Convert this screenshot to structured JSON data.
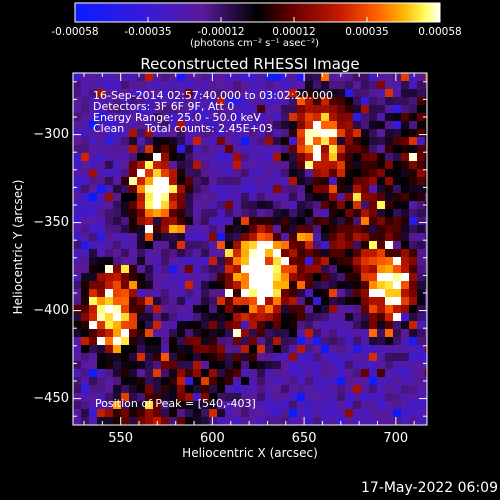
{
  "colorbar": {
    "tick_labels": [
      "-0.00058",
      "-0.00035",
      "-0.00012",
      "0.00012",
      "0.00035",
      "0.00058"
    ],
    "units_label": "(photons cm⁻² s⁻¹ asec⁻²)",
    "colors": [
      "#0a1cff",
      "#3a1ad6",
      "#5a1a9a",
      "#000000",
      "#6a0000",
      "#c01800",
      "#ff5a00",
      "#ffb400",
      "#ffff60",
      "#ffffff"
    ]
  },
  "title": "Reconstructed RHESSI Image",
  "info": {
    "line1": "16-Sep-2014 02:57:40.000 to 03:02:20.000",
    "line2": "Detectors: 3F 6F 9F, Att 0",
    "line3": "Energy Range: 25.0 - 50.0 keV",
    "line4_left": "Clean",
    "line4_right": "Total counts: 2.45E+03"
  },
  "peak_label": "Position of Peak = [540,-403]",
  "footer_date": "17-May-2022 06:09",
  "chart_data": {
    "type": "heatmap",
    "xlabel": "Heliocentric X (arcsec)",
    "ylabel": "Heliocentric Y (arcsec)",
    "x_ticks": [
      550,
      600,
      650,
      700
    ],
    "y_ticks": [
      -300,
      -350,
      -400,
      -450
    ],
    "xlim": [
      524,
      717
    ],
    "ylim": [
      -465,
      -265
    ],
    "zlim": [
      -0.00058,
      0.00058
    ],
    "peak": [
      540,
      -403
    ],
    "bright_regions": [
      {
        "x": 570,
        "y": -333
      },
      {
        "x": 545,
        "y": -400
      },
      {
        "x": 625,
        "y": -375
      },
      {
        "x": 695,
        "y": -385
      },
      {
        "x": 660,
        "y": -300
      }
    ]
  }
}
